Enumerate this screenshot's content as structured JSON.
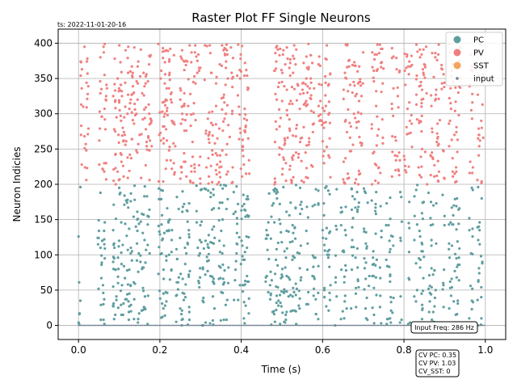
{
  "timestamp": "ts: 2022-11-01-20-16",
  "chart_data": {
    "type": "scatter",
    "title": "Raster Plot FF Single Neurons",
    "xlabel": "Time (s)",
    "ylabel": "Neuron Indicies",
    "xlim": [
      -0.05,
      1.05
    ],
    "ylim": [
      -20,
      420
    ],
    "xticks": [
      0.0,
      0.2,
      0.4,
      0.6,
      0.8,
      1.0
    ],
    "xtick_labels": [
      "0.0",
      "0.2",
      "0.4",
      "0.6",
      "0.8",
      "1.0"
    ],
    "yticks": [
      0,
      50,
      100,
      150,
      200,
      250,
      300,
      350,
      400
    ],
    "ytick_labels": [
      "0",
      "50",
      "100",
      "150",
      "200",
      "250",
      "300",
      "350",
      "400"
    ],
    "grid": true,
    "legend_position": "top-right",
    "series": [
      {
        "name": "PC",
        "color": "#5f9ea0",
        "neuron_range": [
          0,
          199
        ],
        "active_windows": [
          [
            0.0,
            0.005
          ],
          [
            0.045,
            0.065
          ],
          [
            0.085,
            0.175
          ],
          [
            0.195,
            0.23
          ],
          [
            0.24,
            0.275
          ],
          [
            0.29,
            0.335
          ],
          [
            0.345,
            0.37
          ],
          [
            0.38,
            0.42
          ],
          [
            0.46,
            0.55
          ],
          [
            0.56,
            0.565
          ],
          [
            0.575,
            0.59
          ],
          [
            0.6,
            0.62
          ],
          [
            0.63,
            0.635
          ],
          [
            0.645,
            0.66
          ],
          [
            0.67,
            0.69
          ],
          [
            0.7,
            0.715
          ],
          [
            0.72,
            0.735
          ],
          [
            0.74,
            0.745
          ],
          [
            0.755,
            0.775
          ],
          [
            0.79,
            0.795
          ],
          [
            0.81,
            0.815
          ],
          [
            0.825,
            0.85
          ],
          [
            0.86,
            0.88
          ],
          [
            0.895,
            0.9
          ],
          [
            0.91,
            0.94
          ],
          [
            0.96,
            0.97
          ],
          [
            0.98,
            0.995
          ]
        ]
      },
      {
        "name": "PV",
        "color": "#f08080",
        "neuron_range": [
          200,
          399
        ],
        "active_windows": [
          [
            0.005,
            0.025
          ],
          [
            0.05,
            0.07
          ],
          [
            0.085,
            0.18
          ],
          [
            0.195,
            0.24
          ],
          [
            0.25,
            0.3
          ],
          [
            0.31,
            0.33
          ],
          [
            0.335,
            0.38
          ],
          [
            0.39,
            0.42
          ],
          [
            0.48,
            0.58
          ],
          [
            0.59,
            0.62
          ],
          [
            0.65,
            0.7
          ],
          [
            0.72,
            0.75
          ],
          [
            0.77,
            0.79
          ],
          [
            0.8,
            0.82
          ],
          [
            0.83,
            0.86
          ],
          [
            0.865,
            0.9
          ],
          [
            0.91,
            0.94
          ],
          [
            0.96,
            0.97
          ],
          [
            0.98,
            0.995
          ]
        ]
      },
      {
        "name": "SST",
        "color": "#f4a460",
        "neuron_range": [
          400,
          400
        ],
        "active_windows": []
      },
      {
        "name": "input",
        "color": "#708090",
        "neuron_range": [
          0,
          0
        ],
        "active_windows": [
          [
            0.0,
            1.0
          ]
        ]
      }
    ]
  },
  "annotations": {
    "input_freq": "Input Freq: 286 Hz",
    "cv_lines": [
      "CV PC: 0.35",
      "CV PV: 1.03",
      "CV_SST: 0"
    ]
  }
}
